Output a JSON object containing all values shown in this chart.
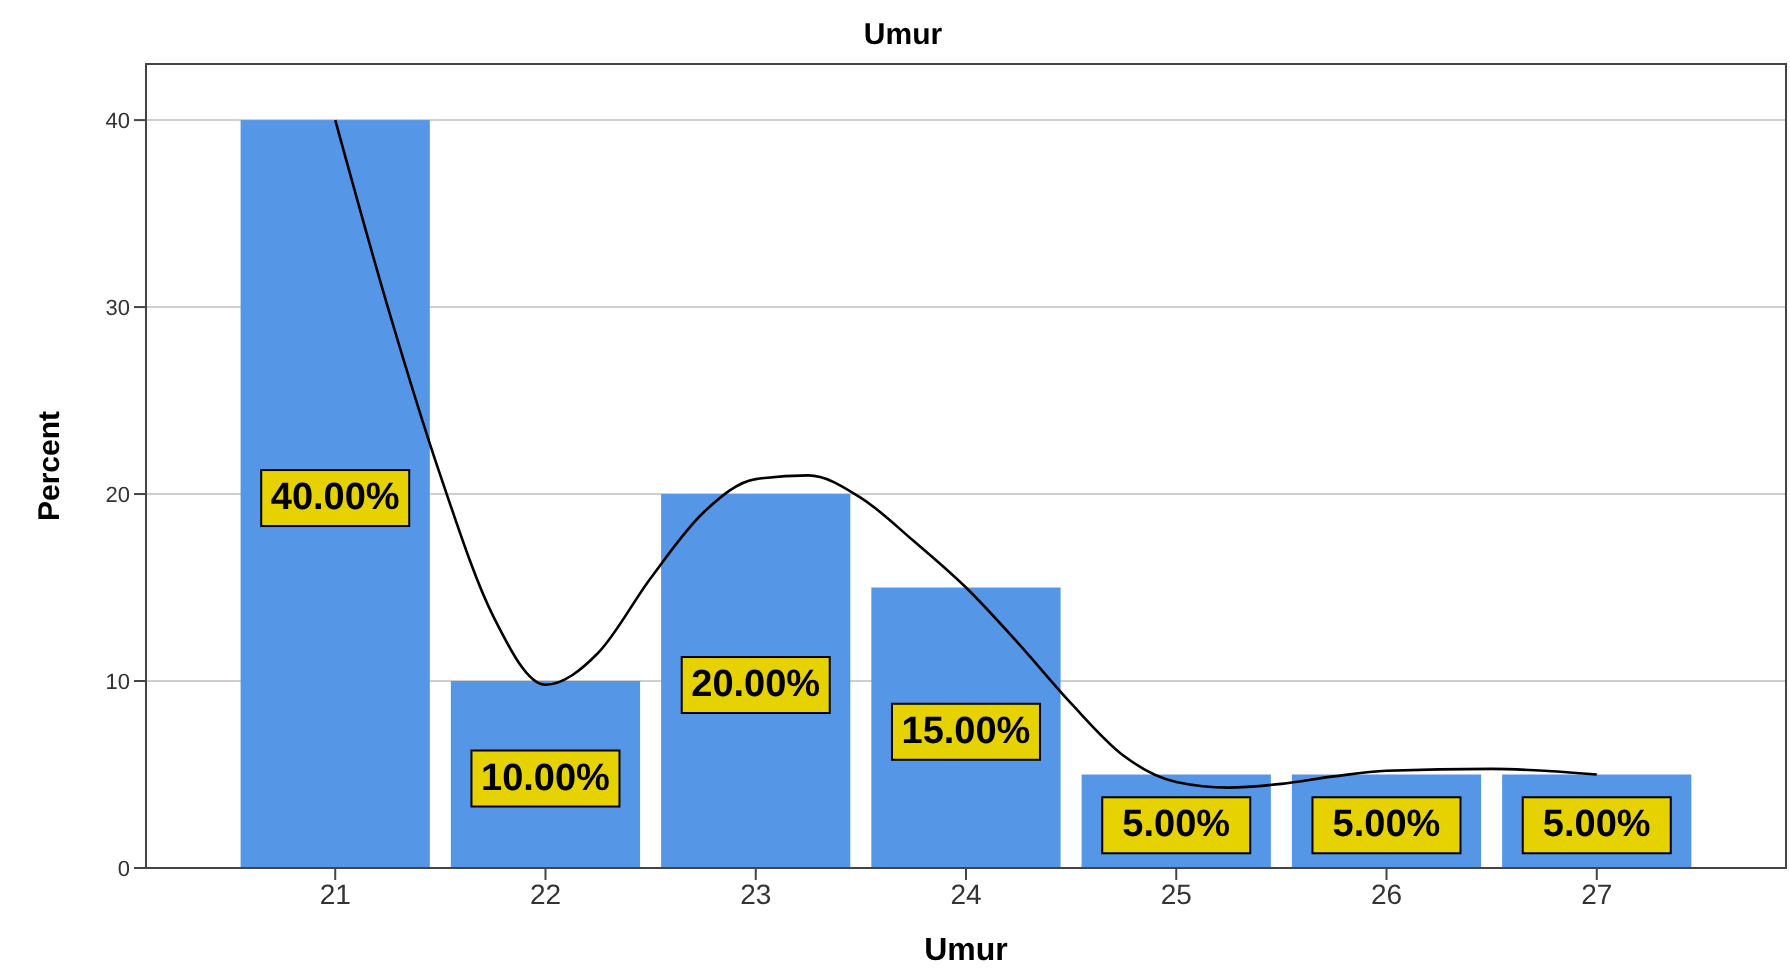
{
  "chart_data": {
    "type": "bar",
    "title": "Umur",
    "xlabel": "Umur",
    "ylabel": "Percent",
    "x": [
      21,
      22,
      23,
      24,
      25,
      26,
      27
    ],
    "xlim": [
      20.1,
      27.9
    ],
    "xticks": [
      21,
      22,
      23,
      24,
      25,
      26,
      27
    ],
    "ylim": [
      0,
      43
    ],
    "yticks": [
      0,
      10,
      20,
      30,
      40
    ],
    "grid": "y",
    "legend": false,
    "series": [
      {
        "color": "#5596e6",
        "values": [
          40,
          10,
          20,
          15,
          5,
          5,
          5
        ],
        "value_labels": [
          "40.00%",
          "10.00%",
          "20.00%",
          "15.00%",
          "5.00%",
          "5.00%",
          "5.00%"
        ]
      },
      {
        "type": "line",
        "color": "#000000",
        "marker": "none",
        "line_style": "solid",
        "x": [
          21,
          21.25,
          21.5,
          21.75,
          22,
          22.25,
          22.5,
          22.75,
          23,
          23.25,
          23.5,
          23.75,
          24,
          24.25,
          24.5,
          24.75,
          25,
          25.25,
          25.5,
          25.75,
          26,
          26.5,
          27
        ],
        "values": [
          40,
          30,
          21,
          13.5,
          9.8,
          11.5,
          15.5,
          19,
          20.8,
          21,
          19.8,
          17.5,
          15,
          12,
          8.8,
          6,
          4.6,
          4.3,
          4.5,
          4.9,
          5.2,
          5.3,
          5
        ]
      }
    ]
  }
}
